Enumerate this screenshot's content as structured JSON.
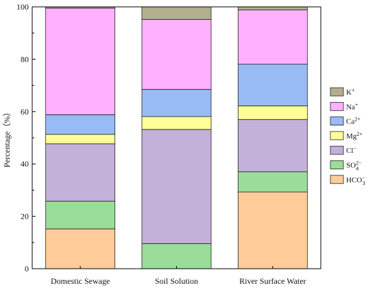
{
  "chart_data": {
    "type": "bar",
    "stacked": true,
    "ylabel": "Percentage（%）",
    "ylim": [
      0,
      100
    ],
    "yticks": [
      "0",
      "20",
      "40",
      "60",
      "80",
      "100"
    ],
    "grid": false,
    "legend_position": "right",
    "categories": [
      "Domestic Sewage",
      "Soil Solution",
      "River Surface Water"
    ],
    "series": [
      {
        "name": "HCO3",
        "label_base": "HCO",
        "label_sub": "3",
        "label_sup": "−",
        "color": "#FFCC99",
        "values": [
          15.2,
          0.0,
          29.3
        ]
      },
      {
        "name": "SO4",
        "label_base": "SO",
        "label_sub": "4",
        "label_sup": "2−",
        "color": "#99DD99",
        "values": [
          10.6,
          9.6,
          7.7
        ]
      },
      {
        "name": "Cl",
        "label_base": "Cl",
        "label_sub": "",
        "label_sup": "−",
        "color": "#C3B1D9",
        "values": [
          21.9,
          43.6,
          20.0
        ]
      },
      {
        "name": "Mg",
        "label_base": "Mg",
        "label_sub": "",
        "label_sup": "2+",
        "color": "#FFFF99",
        "values": [
          3.6,
          4.9,
          5.2
        ]
      },
      {
        "name": "Ca",
        "label_base": "Ca",
        "label_sub": "",
        "label_sup": "2+",
        "color": "#99BBF5",
        "values": [
          7.5,
          10.4,
          15.9
        ]
      },
      {
        "name": "Na",
        "label_base": "Na",
        "label_sub": "",
        "label_sup": "+",
        "color": "#FFB0FF",
        "values": [
          40.7,
          26.7,
          20.7
        ]
      },
      {
        "name": "K",
        "label_base": "K",
        "label_sub": "",
        "label_sup": "+",
        "color": "#B3AE8E",
        "values": [
          0.5,
          4.8,
          1.2
        ]
      }
    ]
  }
}
